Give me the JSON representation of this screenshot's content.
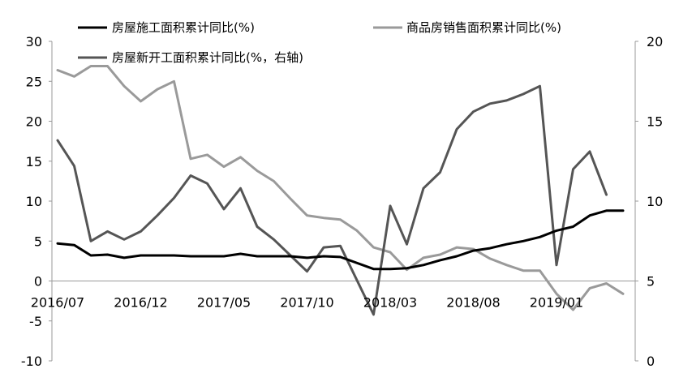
{
  "chart_data": {
    "type": "line",
    "x": [
      "2016/07",
      "2016/08",
      "2016/09",
      "2016/10",
      "2016/11",
      "2016/12",
      "2017/01",
      "2017/02",
      "2017/03",
      "2017/04",
      "2017/05",
      "2017/06",
      "2017/07",
      "2017/08",
      "2017/09",
      "2017/10",
      "2017/11",
      "2017/12",
      "2018/01",
      "2018/02",
      "2018/03",
      "2018/04",
      "2018/05",
      "2018/06",
      "2018/07",
      "2018/08",
      "2018/09",
      "2018/10",
      "2018/11",
      "2018/12",
      "2019/01",
      "2019/02",
      "2019/03",
      "2019/04",
      "2019/05",
      "2019/06",
      "2019/07"
    ],
    "x_tick_labels": [
      "2016/07",
      "2016/12",
      "2017/05",
      "2017/10",
      "2018/03",
      "2018/08",
      "2019/01"
    ],
    "y_left": {
      "min": -10,
      "max": 30,
      "ticks": [
        "-10",
        "-5",
        "0",
        "5",
        "10",
        "15",
        "20",
        "25",
        "30"
      ]
    },
    "y_right": {
      "min": 0,
      "max": 20,
      "ticks": [
        "0",
        "5",
        "10",
        "15",
        "20"
      ]
    },
    "legend": [
      {
        "name": "房屋施工面积累计同比(%)",
        "color": "#000000",
        "series": 0
      },
      {
        "name": "商品房销售面积累计同比(%)",
        "color": "#9a9a9a",
        "series": 1
      },
      {
        "name": "房屋新开工面积累计同比(%，右轴)",
        "color": "#555555",
        "series": 2
      }
    ],
    "series": [
      {
        "name": "房屋施工面积累计同比(%)",
        "axis": "left",
        "color": "#000000",
        "values": [
          4.7,
          4.5,
          3.2,
          3.3,
          2.9,
          3.2,
          null,
          3.2,
          3.1,
          3.1,
          3.1,
          3.4,
          3.1,
          3.1,
          3.1,
          2.9,
          3.1,
          3.0,
          null,
          1.5,
          1.5,
          1.6,
          2.0,
          2.6,
          3.1,
          3.8,
          4.1,
          4.6,
          5.0,
          5.5,
          6.3,
          6.8,
          8.2,
          8.8,
          8.8,
          null,
          null
        ]
      },
      {
        "name": "商品房销售面积累计同比(%)",
        "axis": "left",
        "color": "#9a9a9a",
        "values": [
          26.4,
          25.6,
          26.9,
          26.9,
          24.4,
          22.5,
          24.0,
          25.0,
          15.3,
          15.8,
          14.3,
          15.5,
          13.8,
          12.5,
          10.3,
          8.2,
          7.9,
          7.7,
          6.3,
          4.2,
          3.6,
          1.4,
          2.9,
          3.3,
          4.2,
          4.0,
          2.8,
          2.0,
          1.3,
          1.3,
          -1.6,
          -3.6,
          -0.9,
          -0.3,
          -1.6,
          null,
          null
        ]
      },
      {
        "name": "房屋新开工面积累计同比(%，右轴)",
        "axis": "right",
        "color": "#555555",
        "values": [
          13.8,
          12.2,
          7.5,
          8.1,
          7.6,
          8.1,
          9.1,
          10.2,
          11.6,
          11.1,
          9.5,
          10.8,
          8.4,
          7.6,
          6.6,
          5.6,
          7.1,
          7.2,
          null,
          2.9,
          9.7,
          7.3,
          10.8,
          11.8,
          14.5,
          15.6,
          16.1,
          16.3,
          16.7,
          17.2,
          6.0,
          12.0,
          13.1,
          10.4,
          null,
          null,
          null
        ]
      }
    ]
  }
}
